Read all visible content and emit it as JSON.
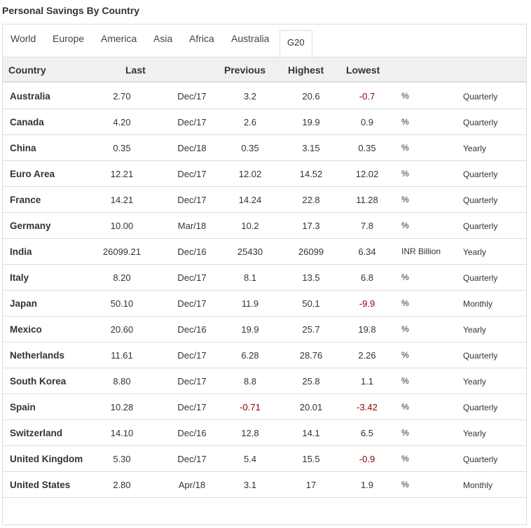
{
  "title": "Personal Savings By Country",
  "tabs": [
    {
      "label": "World"
    },
    {
      "label": "Europe"
    },
    {
      "label": "America"
    },
    {
      "label": "Asia"
    },
    {
      "label": "Africa"
    },
    {
      "label": "Australia"
    },
    {
      "label": "G20",
      "active": true
    }
  ],
  "columns": {
    "country": "Country",
    "last": "Last",
    "previous": "Previous",
    "highest": "Highest",
    "lowest": "Lowest"
  },
  "rows": [
    {
      "country": "Australia",
      "last": "2.70",
      "date": "Dec/17",
      "previous": "3.2",
      "highest": "20.6",
      "lowest": "-0.7",
      "unit": "%",
      "frequency": "Quarterly"
    },
    {
      "country": "Canada",
      "last": "4.20",
      "date": "Dec/17",
      "previous": "2.6",
      "highest": "19.9",
      "lowest": "0.9",
      "unit": "%",
      "frequency": "Quarterly"
    },
    {
      "country": "China",
      "last": "0.35",
      "date": "Dec/18",
      "previous": "0.35",
      "highest": "3.15",
      "lowest": "0.35",
      "unit": "%",
      "frequency": "Yearly"
    },
    {
      "country": "Euro Area",
      "last": "12.21",
      "date": "Dec/17",
      "previous": "12.02",
      "highest": "14.52",
      "lowest": "12.02",
      "unit": "%",
      "frequency": "Quarterly"
    },
    {
      "country": "France",
      "last": "14.21",
      "date": "Dec/17",
      "previous": "14.24",
      "highest": "22.8",
      "lowest": "11.28",
      "unit": "%",
      "frequency": "Quarterly"
    },
    {
      "country": "Germany",
      "last": "10.00",
      "date": "Mar/18",
      "previous": "10.2",
      "highest": "17.3",
      "lowest": "7.8",
      "unit": "%",
      "frequency": "Quarterly"
    },
    {
      "country": "India",
      "last": "26099.21",
      "date": "Dec/16",
      "previous": "25430",
      "highest": "26099",
      "lowest": "6.34",
      "unit": "INR Billion",
      "frequency": "Yearly"
    },
    {
      "country": "Italy",
      "last": "8.20",
      "date": "Dec/17",
      "previous": "8.1",
      "highest": "13.5",
      "lowest": "6.8",
      "unit": "%",
      "frequency": "Quarterly"
    },
    {
      "country": "Japan",
      "last": "50.10",
      "date": "Dec/17",
      "previous": "11.9",
      "highest": "50.1",
      "lowest": "-9.9",
      "unit": "%",
      "frequency": "Monthly"
    },
    {
      "country": "Mexico",
      "last": "20.60",
      "date": "Dec/16",
      "previous": "19.9",
      "highest": "25.7",
      "lowest": "19.8",
      "unit": "%",
      "frequency": "Yearly"
    },
    {
      "country": "Netherlands",
      "last": "11.61",
      "date": "Dec/17",
      "previous": "6.28",
      "highest": "28.76",
      "lowest": "2.26",
      "unit": "%",
      "frequency": "Quarterly"
    },
    {
      "country": "South Korea",
      "last": "8.80",
      "date": "Dec/17",
      "previous": "8.8",
      "highest": "25.8",
      "lowest": "1.1",
      "unit": "%",
      "frequency": "Yearly"
    },
    {
      "country": "Spain",
      "last": "10.28",
      "date": "Dec/17",
      "previous": "-0.71",
      "highest": "20.01",
      "lowest": "-3.42",
      "unit": "%",
      "frequency": "Quarterly"
    },
    {
      "country": "Switzerland",
      "last": "14.10",
      "date": "Dec/16",
      "previous": "12.8",
      "highest": "14.1",
      "lowest": "6.5",
      "unit": "%",
      "frequency": "Yearly"
    },
    {
      "country": "United Kingdom",
      "last": "5.30",
      "date": "Dec/17",
      "previous": "5.4",
      "highest": "15.5",
      "lowest": "-0.9",
      "unit": "%",
      "frequency": "Quarterly"
    },
    {
      "country": "United States",
      "last": "2.80",
      "date": "Apr/18",
      "previous": "3.1",
      "highest": "17",
      "lowest": "1.9",
      "unit": "%",
      "frequency": "Monthly"
    }
  ],
  "colors": {
    "negative": "#8b0000",
    "header_bg": "#f0f0f0",
    "border": "#dddddd"
  }
}
